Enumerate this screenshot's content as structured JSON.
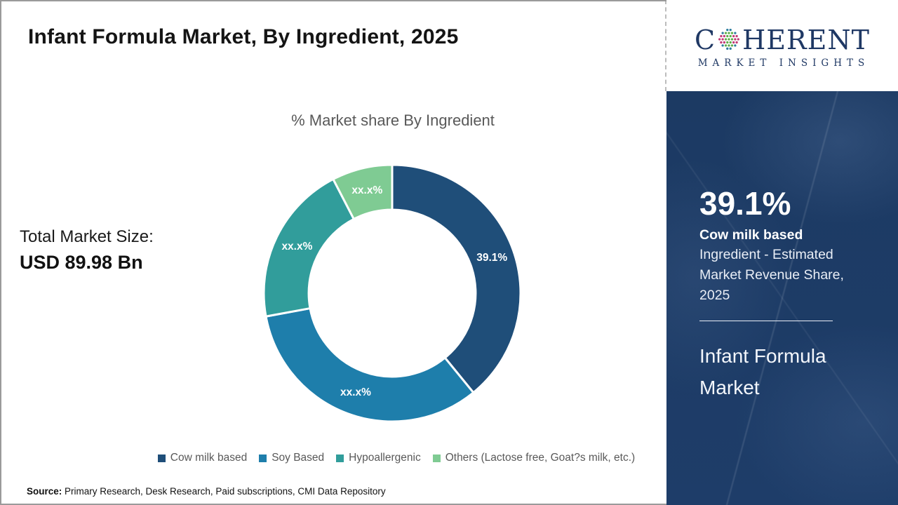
{
  "header": {
    "title": "Infant Formula Market, By Ingredient, 2025"
  },
  "logo": {
    "brand_prefix": "C",
    "brand_suffix": "HERENT",
    "tagline": "MARKET INSIGHTS",
    "navy": "#1F3864",
    "globe_colors": {
      "core": "#5FAD49",
      "poles": "#2B7C9E",
      "sides": "#C23A77"
    }
  },
  "left_panel": {
    "total_label": "Total Market Size:",
    "total_value": "USD 89.98 Bn"
  },
  "chart_data": {
    "type": "pie",
    "variant": "donut",
    "title": "% Market share By Ingredient",
    "categories": [
      "Cow milk based",
      "Soy Based",
      "Hypoallergenic",
      "Others (Lactose free, Goat?s milk, etc.)"
    ],
    "values": [
      39.1,
      33.0,
      20.3,
      7.6
    ],
    "slice_labels": [
      "39.1%",
      "xx.x%",
      "xx.x%",
      "xx.x%"
    ],
    "colors": [
      "#1F4E79",
      "#1E7EAB",
      "#319D9B",
      "#7FCB93"
    ],
    "start_angle": "top",
    "direction": "clockwise",
    "inner_radius_ratio": 0.65,
    "legend_position": "bottom"
  },
  "sidebar": {
    "background": "#1c3a63",
    "stat_value": "39.1%",
    "stat_name": "Cow milk based",
    "stat_desc": "Ingredient - Estimated Market Revenue Share, 2025",
    "market_name": "Infant Formula Market"
  },
  "footer": {
    "source_label": "Source:",
    "source_text": " Primary Research, Desk Research, Paid subscriptions, CMI Data Repository"
  }
}
